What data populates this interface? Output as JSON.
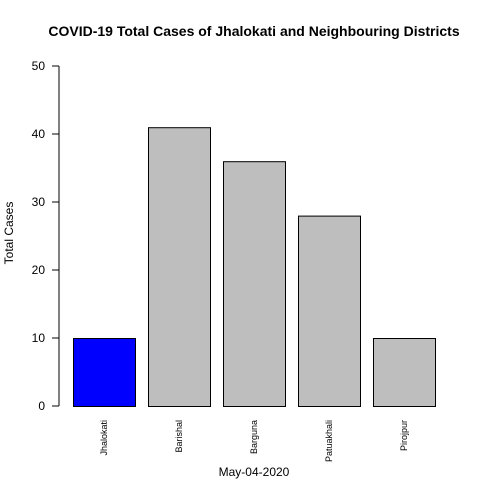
{
  "chart_data": {
    "type": "bar",
    "title": "COVID-19 Total Cases of Jhalokati and Neighbouring Districts",
    "xlabel": "May-04-2020",
    "ylabel": "Total Cases",
    "categories": [
      "Jhalokati",
      "Barishal",
      "Barguna",
      "Patuakhali",
      "Pirojpur"
    ],
    "values": [
      10,
      41,
      36,
      28,
      10
    ],
    "bar_colors": [
      "#0000ff",
      "#bebebe",
      "#bebebe",
      "#bebebe",
      "#bebebe"
    ],
    "ylim": [
      0,
      50
    ],
    "yticks": [
      0,
      10,
      20,
      30,
      40,
      50
    ],
    "grid": false,
    "legend": false
  }
}
